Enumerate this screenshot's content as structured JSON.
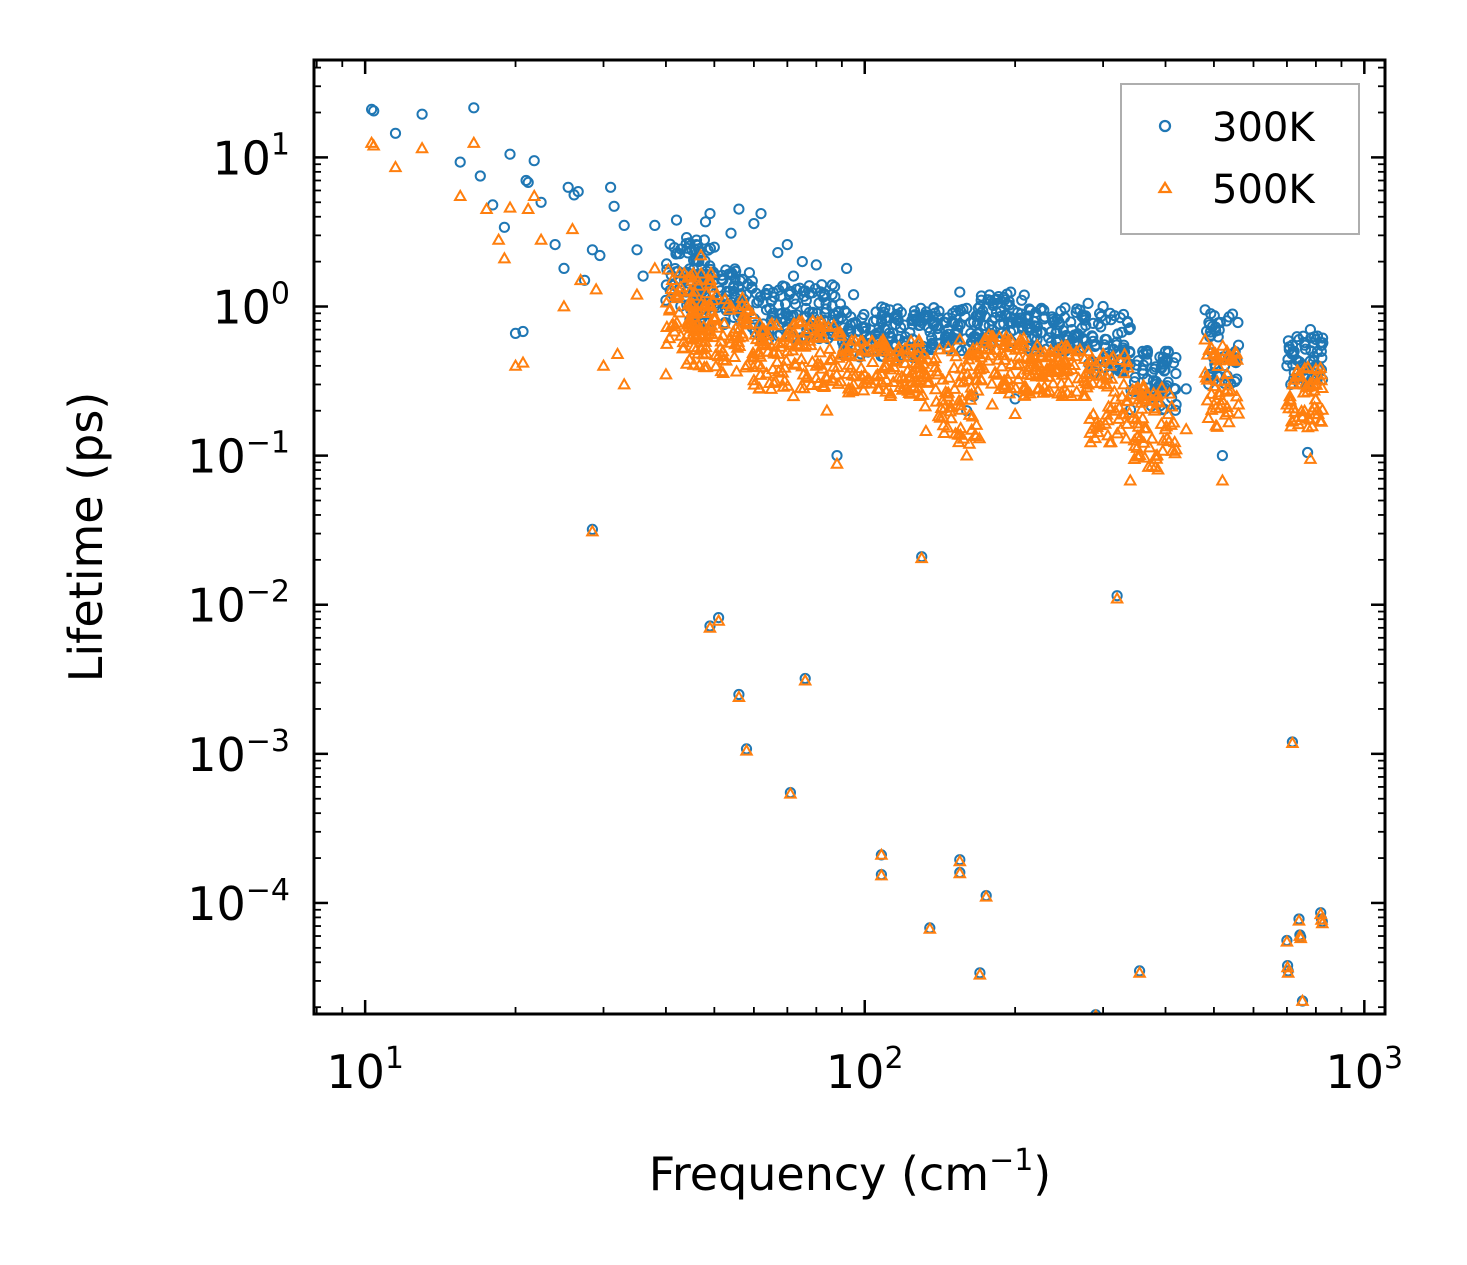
{
  "chart_data": {
    "type": "scatter",
    "title": "",
    "xlabel": {
      "text": "Frequency (cm",
      "sup": "−1",
      "suffix": ")"
    },
    "ylabel": "Lifetime (ps)",
    "xscale": "log",
    "yscale": "log",
    "xlim": [
      7.9,
      1100
    ],
    "ylim": [
      1.8e-05,
      45
    ],
    "x_ticks": [
      {
        "value": 10,
        "base": "10",
        "exp": "1"
      },
      {
        "value": 100,
        "base": "10",
        "exp": "2"
      },
      {
        "value": 1000,
        "base": "10",
        "exp": "3"
      }
    ],
    "y_ticks": [
      {
        "value": 10,
        "base": "10",
        "exp": "1"
      },
      {
        "value": 1,
        "base": "10",
        "exp": "0"
      },
      {
        "value": 0.1,
        "base": "10",
        "exp": "−1"
      },
      {
        "value": 0.01,
        "base": "10",
        "exp": "−2"
      },
      {
        "value": 0.001,
        "base": "10",
        "exp": "−3"
      },
      {
        "value": 0.0001,
        "base": "10",
        "exp": "−4"
      }
    ],
    "legend_position": "top-right",
    "series": [
      {
        "name": "300K",
        "marker": "circle",
        "color": "#1f77b4",
        "points": [
          [
            10.3,
            21
          ],
          [
            10.4,
            20.5
          ],
          [
            11.5,
            14.5
          ],
          [
            13,
            19.5
          ],
          [
            15.5,
            9.3
          ],
          [
            16.5,
            21.5
          ],
          [
            17,
            7.5
          ],
          [
            18,
            4.8
          ],
          [
            19,
            3.4
          ],
          [
            19.5,
            10.5
          ],
          [
            20,
            0.66
          ],
          [
            20.7,
            0.68
          ],
          [
            21,
            7
          ],
          [
            21.2,
            6.8
          ],
          [
            21.8,
            9.5
          ],
          [
            22.5,
            5
          ],
          [
            24,
            2.6
          ],
          [
            25,
            1.8
          ],
          [
            25.5,
            6.3
          ],
          [
            26.2,
            5.6
          ],
          [
            26.7,
            5.9
          ],
          [
            27.5,
            1.5
          ],
          [
            28.5,
            2.4
          ],
          [
            29.5,
            2.2
          ],
          [
            31,
            6.3
          ],
          [
            31.5,
            4.7
          ],
          [
            33,
            3.5
          ],
          [
            35,
            2.4
          ],
          [
            36,
            1.6
          ],
          [
            38,
            3.5
          ],
          [
            40,
            1.1
          ],
          [
            42,
            3.8
          ],
          [
            44,
            2.9
          ],
          [
            46,
            2.6
          ],
          [
            48,
            3.7
          ],
          [
            49,
            4.2
          ],
          [
            50,
            2.5
          ],
          [
            52,
            1.5
          ],
          [
            54,
            3.1
          ],
          [
            56,
            4.5
          ],
          [
            58,
            1.2
          ],
          [
            60,
            3.6
          ],
          [
            62,
            4.2
          ],
          [
            64,
            1.3
          ],
          [
            67,
            2.3
          ],
          [
            70,
            2.6
          ],
          [
            72,
            1.6
          ],
          [
            75,
            2.0
          ],
          [
            80,
            1.9
          ],
          [
            82,
            1.4
          ],
          [
            86,
            1.2
          ],
          [
            88,
            0.1
          ],
          [
            92,
            1.8
          ],
          [
            95,
            1.2
          ],
          [
            100,
            0.68
          ],
          [
            105,
            0.65
          ],
          [
            110,
            0.7
          ],
          [
            120,
            0.75
          ],
          [
            125,
            0.6
          ],
          [
            130,
            0.78
          ],
          [
            140,
            0.65
          ],
          [
            150,
            0.9
          ],
          [
            155,
            1.25
          ],
          [
            160,
            0.2
          ],
          [
            165,
            0.25
          ],
          [
            170,
            1.0
          ],
          [
            180,
            0.8
          ],
          [
            190,
            1.15
          ],
          [
            196,
            1.25
          ],
          [
            200,
            0.24
          ],
          [
            210,
            0.85
          ],
          [
            225,
            0.95
          ],
          [
            240,
            0.8
          ],
          [
            260,
            0.7
          ],
          [
            280,
            1.05
          ],
          [
            300,
            1.0
          ],
          [
            310,
            0.9
          ],
          [
            330,
            0.55
          ],
          [
            340,
            0.72
          ],
          [
            360,
            0.5
          ],
          [
            380,
            0.38
          ],
          [
            400,
            0.5
          ],
          [
            420,
            0.22
          ],
          [
            440,
            0.28
          ],
          [
            480,
            0.95
          ],
          [
            500,
            0.45
          ],
          [
            520,
            0.1
          ],
          [
            560,
            0.55
          ],
          [
            700,
            0.4
          ],
          [
            720,
            0.5
          ],
          [
            740,
            0.6
          ],
          [
            760,
            0.55
          ],
          [
            780,
            0.7
          ],
          [
            800,
            0.6
          ],
          [
            820,
            0.5
          ],
          [
            770,
            0.105
          ],
          [
            28.5,
            0.032
          ],
          [
            130,
            0.021
          ],
          [
            320,
            0.0115
          ],
          [
            49,
            0.0072
          ],
          [
            51,
            0.0082
          ],
          [
            56,
            0.0025
          ],
          [
            58,
            0.00108
          ],
          [
            76,
            0.0032
          ],
          [
            71,
            0.00055
          ],
          [
            108,
            0.00021
          ],
          [
            108,
            0.000155
          ],
          [
            155,
            0.000195
          ],
          [
            155,
            0.00016
          ],
          [
            175,
            0.000112
          ],
          [
            135,
            6.8e-05
          ],
          [
            170,
            3.4e-05
          ],
          [
            355,
            3.5e-05
          ],
          [
            718,
            0.0012
          ],
          [
            700,
            5.6e-05
          ],
          [
            702,
            3.8e-05
          ],
          [
            704,
            3.5e-05
          ],
          [
            740,
            7.8e-05
          ],
          [
            743,
            6.1e-05
          ],
          [
            746,
            5.9e-05
          ],
          [
            752,
            2.2e-05
          ],
          [
            818,
            8.6e-05
          ],
          [
            821,
            7.8e-05
          ],
          [
            824,
            7.5e-05
          ],
          [
            290,
            1.78e-05
          ]
        ]
      },
      {
        "name": "500K",
        "marker": "triangle",
        "color": "#ff7f0e",
        "points": [
          [
            10.3,
            12.5
          ],
          [
            10.4,
            12
          ],
          [
            11.5,
            8.6
          ],
          [
            13,
            11.5
          ],
          [
            15.5,
            5.5
          ],
          [
            16.5,
            12.5
          ],
          [
            17.5,
            4.5
          ],
          [
            18.5,
            2.8
          ],
          [
            19,
            2.1
          ],
          [
            19.5,
            4.6
          ],
          [
            20,
            0.4
          ],
          [
            20.7,
            0.42
          ],
          [
            21.2,
            4.5
          ],
          [
            21.8,
            5.5
          ],
          [
            22.5,
            2.8
          ],
          [
            25,
            1.0
          ],
          [
            26,
            3.3
          ],
          [
            27,
            1.5
          ],
          [
            29,
            1.3
          ],
          [
            30,
            0.4
          ],
          [
            32,
            0.48
          ],
          [
            33,
            0.3
          ],
          [
            35,
            1.2
          ],
          [
            38,
            1.8
          ],
          [
            40,
            0.35
          ],
          [
            42,
            1.2
          ],
          [
            45,
            1.6
          ],
          [
            47,
            2.2
          ],
          [
            48,
            1.0
          ],
          [
            50,
            0.85
          ],
          [
            52,
            0.5
          ],
          [
            54,
            1.0
          ],
          [
            56,
            0.7
          ],
          [
            60,
            0.32
          ],
          [
            62,
            0.6
          ],
          [
            65,
            0.28
          ],
          [
            70,
            0.5
          ],
          [
            72,
            0.25
          ],
          [
            75,
            0.62
          ],
          [
            78,
            0.55
          ],
          [
            80,
            0.4
          ],
          [
            84,
            0.2
          ],
          [
            88,
            0.088
          ],
          [
            92,
            0.5
          ],
          [
            95,
            0.3
          ],
          [
            100,
            0.35
          ],
          [
            110,
            0.4
          ],
          [
            120,
            0.3
          ],
          [
            130,
            0.45
          ],
          [
            140,
            0.35
          ],
          [
            150,
            0.5
          ],
          [
            155,
            0.6
          ],
          [
            160,
            0.1
          ],
          [
            162,
            0.12
          ],
          [
            170,
            0.4
          ],
          [
            180,
            0.22
          ],
          [
            190,
            0.55
          ],
          [
            196,
            0.6
          ],
          [
            200,
            0.19
          ],
          [
            210,
            0.45
          ],
          [
            225,
            0.5
          ],
          [
            240,
            0.42
          ],
          [
            250,
            0.35
          ],
          [
            260,
            0.38
          ],
          [
            280,
            0.5
          ],
          [
            300,
            0.48
          ],
          [
            310,
            0.4
          ],
          [
            330,
            0.3
          ],
          [
            340,
            0.068
          ],
          [
            360,
            0.25
          ],
          [
            380,
            0.2
          ],
          [
            400,
            0.15
          ],
          [
            420,
            0.11
          ],
          [
            440,
            0.15
          ],
          [
            480,
            0.6
          ],
          [
            500,
            0.22
          ],
          [
            520,
            0.068
          ],
          [
            560,
            0.22
          ],
          [
            700,
            0.22
          ],
          [
            720,
            0.3
          ],
          [
            740,
            0.35
          ],
          [
            760,
            0.3
          ],
          [
            780,
            0.095
          ],
          [
            800,
            0.38
          ],
          [
            820,
            0.32
          ],
          [
            28.5,
            0.031
          ],
          [
            130,
            0.0205
          ],
          [
            320,
            0.011
          ],
          [
            49,
            0.007
          ],
          [
            51,
            0.0078
          ],
          [
            56,
            0.0024
          ],
          [
            58,
            0.00105
          ],
          [
            76,
            0.0031
          ],
          [
            71,
            0.00054
          ],
          [
            108,
            0.00021
          ],
          [
            108,
            0.000153
          ],
          [
            155,
            0.00019
          ],
          [
            155,
            0.000158
          ],
          [
            175,
            0.00011
          ],
          [
            135,
            6.7e-05
          ],
          [
            170,
            3.3e-05
          ],
          [
            355,
            3.4e-05
          ],
          [
            718,
            0.00118
          ],
          [
            700,
            5.5e-05
          ],
          [
            702,
            3.7e-05
          ],
          [
            704,
            3.4e-05
          ],
          [
            740,
            7.6e-05
          ],
          [
            743,
            6e-05
          ],
          [
            746,
            5.8e-05
          ],
          [
            752,
            2.2e-05
          ],
          [
            818,
            8.4e-05
          ],
          [
            821,
            7.7e-05
          ],
          [
            824,
            7.3e-05
          ],
          [
            290,
            1.75e-05
          ]
        ]
      }
    ],
    "dense_bands": [
      {
        "series": "300K",
        "ranges": [
          [
            40,
            50,
            1.0,
            2.8
          ],
          [
            44,
            60,
            0.7,
            1.8
          ],
          [
            60,
            90,
            0.6,
            1.4
          ],
          [
            90,
            130,
            0.45,
            1.0
          ],
          [
            130,
            170,
            0.5,
            1.0
          ],
          [
            170,
            210,
            0.55,
            1.25
          ],
          [
            210,
            280,
            0.5,
            1.0
          ],
          [
            280,
            340,
            0.35,
            0.9
          ],
          [
            340,
            420,
            0.2,
            0.55
          ],
          [
            480,
            560,
            0.3,
            0.9
          ],
          [
            700,
            830,
            0.3,
            0.65
          ]
        ]
      },
      {
        "series": "500K",
        "ranges": [
          [
            40,
            50,
            0.5,
            1.8
          ],
          [
            44,
            60,
            0.35,
            1.2
          ],
          [
            60,
            90,
            0.28,
            0.8
          ],
          [
            90,
            130,
            0.25,
            0.6
          ],
          [
            130,
            170,
            0.12,
            0.55
          ],
          [
            170,
            210,
            0.25,
            0.65
          ],
          [
            210,
            280,
            0.25,
            0.55
          ],
          [
            280,
            340,
            0.12,
            0.48
          ],
          [
            340,
            420,
            0.08,
            0.3
          ],
          [
            480,
            560,
            0.15,
            0.55
          ],
          [
            700,
            830,
            0.15,
            0.4
          ]
        ]
      }
    ]
  }
}
